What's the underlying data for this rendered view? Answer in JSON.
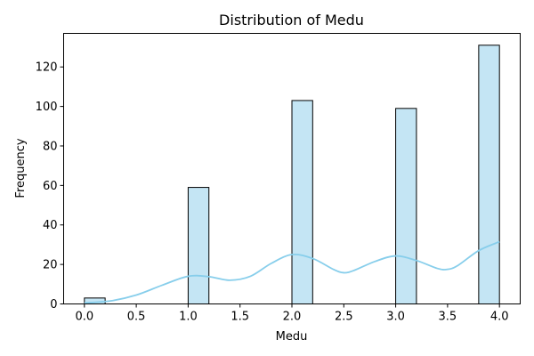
{
  "chart_data": {
    "type": "bar",
    "title": "Distribution of Medu",
    "xlabel": "Medu",
    "ylabel": "Frequency",
    "xlim": [
      -0.2,
      4.2
    ],
    "ylim": [
      0,
      137
    ],
    "x_ticks": [
      0.0,
      0.5,
      1.0,
      1.5,
      2.0,
      2.5,
      3.0,
      3.5,
      4.0
    ],
    "x_tick_labels": [
      "0.0",
      "0.5",
      "1.0",
      "1.5",
      "2.0",
      "2.5",
      "3.0",
      "3.5",
      "4.0"
    ],
    "y_ticks": [
      0,
      20,
      40,
      60,
      80,
      100,
      120
    ],
    "y_tick_labels": [
      "0",
      "20",
      "40",
      "60",
      "80",
      "100",
      "120"
    ],
    "bin_width": 0.2,
    "bins": [
      {
        "start": 0.0,
        "end": 0.2,
        "count": 3
      },
      {
        "start": 1.0,
        "end": 1.2,
        "count": 59
      },
      {
        "start": 2.0,
        "end": 2.2,
        "count": 103
      },
      {
        "start": 3.0,
        "end": 3.2,
        "count": 99
      },
      {
        "start": 3.8,
        "end": 4.0,
        "count": 131
      }
    ],
    "kde": {
      "x": [
        0.0,
        0.25,
        0.5,
        0.75,
        1.0,
        1.2,
        1.4,
        1.6,
        1.8,
        2.0,
        2.2,
        2.4,
        2.5,
        2.6,
        2.8,
        3.0,
        3.2,
        3.4,
        3.5,
        3.6,
        3.8,
        4.0
      ],
      "y": [
        0.5,
        1.5,
        4.5,
        9.5,
        14.0,
        13.8,
        12.0,
        14.0,
        20.5,
        25.0,
        23.0,
        17.5,
        15.8,
        17.0,
        21.5,
        24.3,
        22.0,
        18.0,
        17.5,
        19.5,
        27.0,
        31.5
      ]
    },
    "colors": {
      "bar_fill": "#c4e5f4",
      "bar_edge": "#000000",
      "kde_line": "#87ceeb"
    },
    "grid": false,
    "legend": "none"
  }
}
